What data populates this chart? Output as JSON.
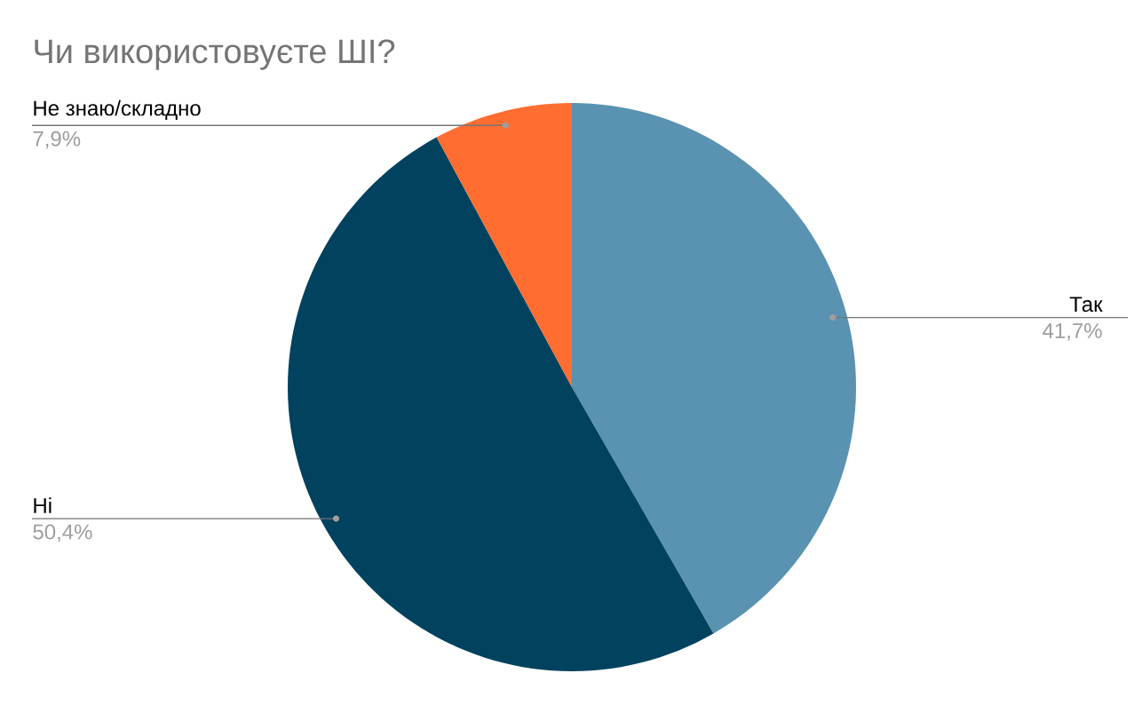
{
  "chart_data": {
    "type": "pie",
    "title": "Чи використовуєте ШІ?",
    "categories": [
      "Так",
      "Ні",
      "Не знаю/складно"
    ],
    "values": [
      41.7,
      50.4,
      7.9
    ],
    "colors": [
      "#5a93b1",
      "#01425e",
      "#ff6d31"
    ],
    "value_labels": [
      "41,7%",
      "50,4%",
      "7,9%"
    ]
  }
}
